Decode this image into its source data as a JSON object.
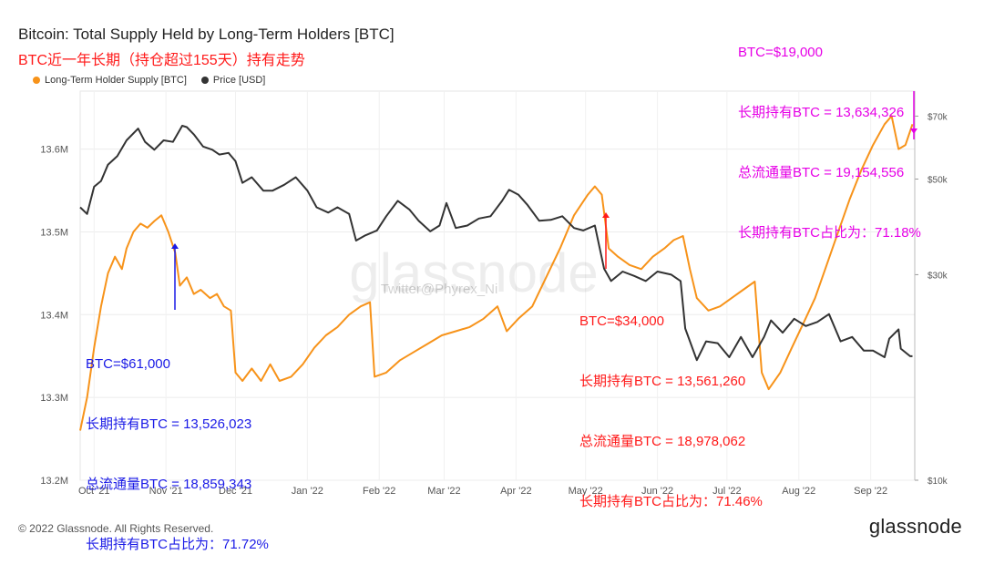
{
  "header": {
    "title": "Bitcoin: Total Supply Held by Long-Term Holders [BTC]",
    "subtitle": "BTC近一年长期（持仓超过155天）持有走势"
  },
  "legend": [
    {
      "label": "Long-Term Holder Supply [BTC]",
      "color": "#f7931a"
    },
    {
      "label": "Price [USD]",
      "color": "#333333"
    }
  ],
  "watermark": {
    "logo": "glassnode",
    "handle": "Twitter@Phyrex_Ni"
  },
  "footer": {
    "copyright": "© 2022 Glassnode. All Rights Reserved.",
    "brand": "glassnode"
  },
  "annotations": [
    {
      "color": "#1a1ae6",
      "lines": [
        "BTC=$61,000",
        "长期持有BTC = 13,526,023",
        "总流通量BTC = 18,859,343",
        "长期持有BTC占比为：71.72%"
      ]
    },
    {
      "color": "#ff1a1a",
      "lines": [
        "BTC=$34,000",
        "长期持有BTC = 13,561,260",
        "总流通量BTC = 18,978,062",
        "长期持有BTC占比为：71.46%"
      ]
    },
    {
      "color": "#e600e6",
      "lines": [
        "BTC=$19,000",
        "长期持有BTC = 13,634,326",
        "总流通量BTC = 19,154,556",
        "长期持有BTC占比为：71.18%"
      ]
    }
  ],
  "chart_data": {
    "type": "line",
    "title": "Bitcoin: Total Supply Held by Long-Term Holders [BTC]",
    "x_ticks": [
      "Oct '21",
      "Nov '21",
      "Dec '21",
      "Jan '22",
      "Feb '22",
      "Mar '22",
      "Apr '22",
      "May '22",
      "Jun '22",
      "Jul '22",
      "Aug '22",
      "Sep '22"
    ],
    "left_axis": {
      "ticks": [
        "13.2M",
        "13.3M",
        "13.4M",
        "13.5M",
        "13.6M"
      ],
      "ylim": [
        13200000,
        13670000
      ]
    },
    "right_axis": {
      "scale": "log",
      "ticks": [
        "$10k",
        "$30k",
        "$50k",
        "$70k"
      ],
      "ylim": [
        10000,
        80000
      ]
    },
    "grid": true,
    "legend_position": "top-left",
    "series": [
      {
        "name": "Long-Term Holder Supply [BTC]",
        "axis": "left",
        "color": "#f7931a",
        "points": [
          [
            "2021-09-25",
            13260000
          ],
          [
            "2021-09-28",
            13300000
          ],
          [
            "2021-10-01",
            13360000
          ],
          [
            "2021-10-04",
            13410000
          ],
          [
            "2021-10-07",
            13450000
          ],
          [
            "2021-10-10",
            13470000
          ],
          [
            "2021-10-13",
            13455000
          ],
          [
            "2021-10-15",
            13480000
          ],
          [
            "2021-10-18",
            13500000
          ],
          [
            "2021-10-21",
            13510000
          ],
          [
            "2021-10-24",
            13505000
          ],
          [
            "2021-10-27",
            13513000
          ],
          [
            "2021-10-30",
            13520000
          ],
          [
            "2021-11-02",
            13500000
          ],
          [
            "2021-11-05",
            13475000
          ],
          [
            "2021-11-07",
            13435000
          ],
          [
            "2021-11-10",
            13445000
          ],
          [
            "2021-11-13",
            13425000
          ],
          [
            "2021-11-16",
            13430000
          ],
          [
            "2021-11-20",
            13420000
          ],
          [
            "2021-11-23",
            13425000
          ],
          [
            "2021-11-26",
            13410000
          ],
          [
            "2021-11-29",
            13405000
          ],
          [
            "2021-12-01",
            13330000
          ],
          [
            "2021-12-04",
            13320000
          ],
          [
            "2021-12-08",
            13335000
          ],
          [
            "2021-12-12",
            13320000
          ],
          [
            "2021-12-16",
            13340000
          ],
          [
            "2021-12-20",
            13320000
          ],
          [
            "2021-12-25",
            13325000
          ],
          [
            "2021-12-30",
            13340000
          ],
          [
            "2022-01-04",
            13360000
          ],
          [
            "2022-01-09",
            13375000
          ],
          [
            "2022-01-14",
            13385000
          ],
          [
            "2022-01-19",
            13400000
          ],
          [
            "2022-01-24",
            13410000
          ],
          [
            "2022-01-28",
            13415000
          ],
          [
            "2022-01-30",
            13325000
          ],
          [
            "2022-02-04",
            13330000
          ],
          [
            "2022-02-10",
            13345000
          ],
          [
            "2022-02-16",
            13355000
          ],
          [
            "2022-02-22",
            13365000
          ],
          [
            "2022-02-28",
            13375000
          ],
          [
            "2022-03-06",
            13380000
          ],
          [
            "2022-03-12",
            13385000
          ],
          [
            "2022-03-18",
            13395000
          ],
          [
            "2022-03-24",
            13410000
          ],
          [
            "2022-03-28",
            13380000
          ],
          [
            "2022-04-02",
            13395000
          ],
          [
            "2022-04-08",
            13410000
          ],
          [
            "2022-04-14",
            13445000
          ],
          [
            "2022-04-20",
            13480000
          ],
          [
            "2022-04-26",
            13520000
          ],
          [
            "2022-05-02",
            13545000
          ],
          [
            "2022-05-05",
            13555000
          ],
          [
            "2022-05-08",
            13545000
          ],
          [
            "2022-05-11",
            13480000
          ],
          [
            "2022-05-15",
            13470000
          ],
          [
            "2022-05-20",
            13460000
          ],
          [
            "2022-05-25",
            13455000
          ],
          [
            "2022-05-30",
            13470000
          ],
          [
            "2022-06-04",
            13480000
          ],
          [
            "2022-06-08",
            13490000
          ],
          [
            "2022-06-12",
            13495000
          ],
          [
            "2022-06-15",
            13455000
          ],
          [
            "2022-06-18",
            13420000
          ],
          [
            "2022-06-23",
            13405000
          ],
          [
            "2022-06-28",
            13410000
          ],
          [
            "2022-07-03",
            13420000
          ],
          [
            "2022-07-08",
            13430000
          ],
          [
            "2022-07-13",
            13440000
          ],
          [
            "2022-07-16",
            13330000
          ],
          [
            "2022-07-19",
            13310000
          ],
          [
            "2022-07-24",
            13330000
          ],
          [
            "2022-07-29",
            13360000
          ],
          [
            "2022-08-03",
            13390000
          ],
          [
            "2022-08-08",
            13420000
          ],
          [
            "2022-08-13",
            13460000
          ],
          [
            "2022-08-18",
            13500000
          ],
          [
            "2022-08-23",
            13540000
          ],
          [
            "2022-08-28",
            13575000
          ],
          [
            "2022-09-02",
            13605000
          ],
          [
            "2022-09-07",
            13630000
          ],
          [
            "2022-09-10",
            13640000
          ],
          [
            "2022-09-13",
            13600000
          ],
          [
            "2022-09-16",
            13605000
          ],
          [
            "2022-09-19",
            13630000
          ]
        ]
      },
      {
        "name": "Price [USD]",
        "axis": "right",
        "color": "#333333",
        "points": [
          [
            "2021-09-25",
            43000
          ],
          [
            "2021-09-28",
            41500
          ],
          [
            "2021-10-01",
            48000
          ],
          [
            "2021-10-04",
            49500
          ],
          [
            "2021-10-07",
            54000
          ],
          [
            "2021-10-11",
            56500
          ],
          [
            "2021-10-15",
            61500
          ],
          [
            "2021-10-20",
            65500
          ],
          [
            "2021-10-23",
            61000
          ],
          [
            "2021-10-27",
            58500
          ],
          [
            "2021-10-31",
            61500
          ],
          [
            "2021-11-04",
            61000
          ],
          [
            "2021-11-08",
            66500
          ],
          [
            "2021-11-10",
            66000
          ],
          [
            "2021-11-13",
            63500
          ],
          [
            "2021-11-17",
            59500
          ],
          [
            "2021-11-21",
            58500
          ],
          [
            "2021-11-24",
            57000
          ],
          [
            "2021-11-28",
            57500
          ],
          [
            "2021-12-01",
            55000
          ],
          [
            "2021-12-04",
            49000
          ],
          [
            "2021-12-08",
            50500
          ],
          [
            "2021-12-13",
            47000
          ],
          [
            "2021-12-17",
            47000
          ],
          [
            "2021-12-22",
            48500
          ],
          [
            "2021-12-27",
            50500
          ],
          [
            "2022-01-01",
            47000
          ],
          [
            "2022-01-05",
            43000
          ],
          [
            "2022-01-10",
            41800
          ],
          [
            "2022-01-14",
            43000
          ],
          [
            "2022-01-19",
            41500
          ],
          [
            "2022-01-22",
            36000
          ],
          [
            "2022-01-26",
            37000
          ],
          [
            "2022-01-31",
            38000
          ],
          [
            "2022-02-04",
            41000
          ],
          [
            "2022-02-09",
            44500
          ],
          [
            "2022-02-14",
            42500
          ],
          [
            "2022-02-18",
            40000
          ],
          [
            "2022-02-23",
            37800
          ],
          [
            "2022-02-27",
            39000
          ],
          [
            "2022-03-02",
            44000
          ],
          [
            "2022-03-06",
            38500
          ],
          [
            "2022-03-11",
            39000
          ],
          [
            "2022-03-16",
            40500
          ],
          [
            "2022-03-21",
            41000
          ],
          [
            "2022-03-26",
            44500
          ],
          [
            "2022-03-29",
            47200
          ],
          [
            "2022-04-02",
            46000
          ],
          [
            "2022-04-06",
            43500
          ],
          [
            "2022-04-11",
            40000
          ],
          [
            "2022-04-16",
            40200
          ],
          [
            "2022-04-21",
            41000
          ],
          [
            "2022-04-26",
            38500
          ],
          [
            "2022-04-30",
            38000
          ],
          [
            "2022-05-05",
            39000
          ],
          [
            "2022-05-09",
            31000
          ],
          [
            "2022-05-12",
            29000
          ],
          [
            "2022-05-17",
            30500
          ],
          [
            "2022-05-22",
            29800
          ],
          [
            "2022-05-27",
            29000
          ],
          [
            "2022-06-01",
            30500
          ],
          [
            "2022-06-07",
            30000
          ],
          [
            "2022-06-11",
            29000
          ],
          [
            "2022-06-13",
            22500
          ],
          [
            "2022-06-18",
            19000
          ],
          [
            "2022-06-22",
            21000
          ],
          [
            "2022-06-27",
            20800
          ],
          [
            "2022-07-02",
            19300
          ],
          [
            "2022-07-07",
            21500
          ],
          [
            "2022-07-12",
            19300
          ],
          [
            "2022-07-17",
            21500
          ],
          [
            "2022-07-20",
            23500
          ],
          [
            "2022-07-25",
            22000
          ],
          [
            "2022-07-30",
            23700
          ],
          [
            "2022-08-04",
            22800
          ],
          [
            "2022-08-09",
            23300
          ],
          [
            "2022-08-14",
            24300
          ],
          [
            "2022-08-19",
            21000
          ],
          [
            "2022-08-24",
            21500
          ],
          [
            "2022-08-29",
            20000
          ],
          [
            "2022-09-02",
            20000
          ],
          [
            "2022-09-07",
            19300
          ],
          [
            "2022-09-09",
            21300
          ],
          [
            "2022-09-13",
            22400
          ],
          [
            "2022-09-14",
            20200
          ],
          [
            "2022-09-18",
            19400
          ],
          [
            "2022-09-19",
            19400
          ]
        ]
      }
    ]
  }
}
